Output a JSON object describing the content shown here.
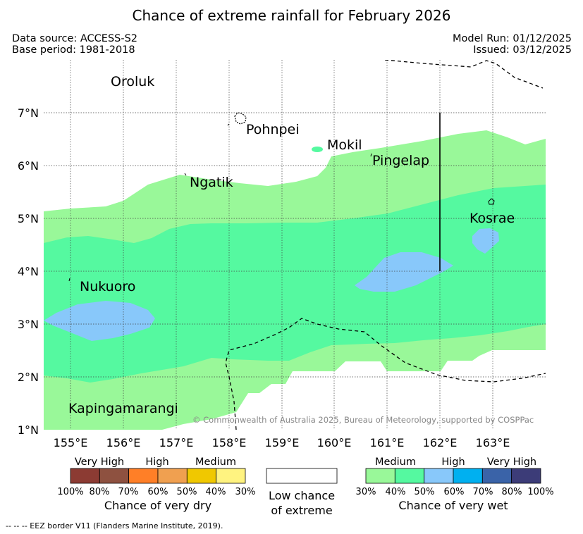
{
  "title": "Chance of extreme rainfall for February 2026",
  "meta": {
    "data_source": "Data source: ACCESS-S2",
    "base_period": "Base period: 1981-2018",
    "model_run": "Model Run: 01/12/2025",
    "issued": "Issued: 03/12/2025"
  },
  "axes": {
    "lon_labels": [
      "155°E",
      "156°E",
      "157°E",
      "158°E",
      "159°E",
      "160°E",
      "161°E",
      "162°E",
      "163°E"
    ],
    "lat_labels": [
      "7°N",
      "6°N",
      "5°N",
      "4°N",
      "3°N",
      "2°N",
      "1°N"
    ]
  },
  "places": {
    "oroluk": "Oroluk",
    "pohnpei": "Pohnpei",
    "mokil": "Mokil",
    "pingelap": "Pingelap",
    "ngatik": "Ngatik",
    "kosrae": "Kosrae",
    "nukuoro": "Nukuoro",
    "kapingamarangi": "Kapingamarangi"
  },
  "copyright": "© Commonwealth of Australia 2025, Bureau of Meteorology, supported by COSPPac",
  "legend": {
    "dry": {
      "categories": [
        "Very High",
        "High",
        "Medium"
      ],
      "percents": [
        "100%",
        "80%",
        "70%",
        "60%",
        "50%",
        "40%",
        "30%"
      ],
      "caption": "Chance of very dry",
      "colors": [
        "#8c3b33",
        "#8e5140",
        "#ff7f27",
        "#f0a050",
        "#f0c800",
        "#fff380"
      ]
    },
    "low": {
      "caption_line1": "Low chance",
      "caption_line2": "of extreme"
    },
    "wet": {
      "categories": [
        "Medium",
        "High",
        "Very High"
      ],
      "percents": [
        "30%",
        "40%",
        "50%",
        "60%",
        "70%",
        "80%",
        "100%"
      ],
      "caption": "Chance of very wet",
      "colors": [
        "#99f899",
        "#55f9a0",
        "#88c8fa",
        "#00b0f0",
        "#3a63a8",
        "#3c3c78"
      ]
    }
  },
  "footer": "--  --  -- EEZ border V11 (Flanders Marine Institute, 2019)."
}
